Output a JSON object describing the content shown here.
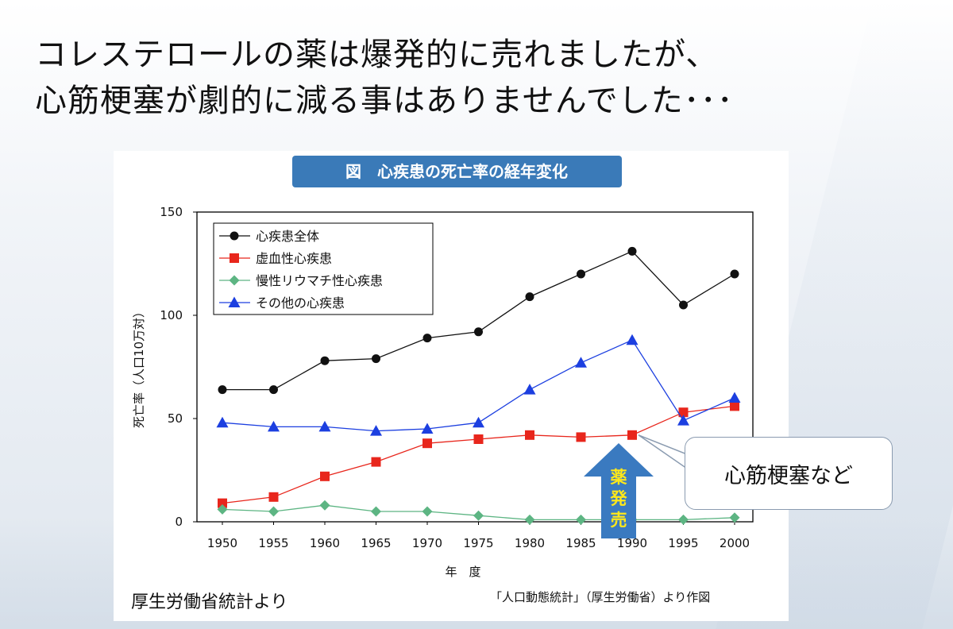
{
  "slide": {
    "heading_line1": "コレステロールの薬は爆発的に売れましたが、",
    "heading_line2": "心筋梗塞が劇的に減る事はありませんでした･･･",
    "source_left": "厚生労働省統計より",
    "source_right": "「人口動態統計」（厚生労働省）より作図",
    "callout_text": "心筋梗塞など",
    "drug_launch_label": "薬発売",
    "drug_launch_year": 1990
  },
  "colors": {
    "title_box": "#3a7ab8",
    "series_total": "#111111",
    "series_ischemic": "#e8261c",
    "series_rheumatic": "#5db583",
    "series_other": "#1c3fe0",
    "arrow": "#3a7ac0",
    "arrow_text": "#ffe81a"
  },
  "chart_data": {
    "type": "line",
    "title": "図　心疾患の死亡率の経年変化",
    "xlabel": "年　度",
    "ylabel": "死亡率（人口10万対）",
    "categories": [
      "1950",
      "1955",
      "1960",
      "1965",
      "1970",
      "1975",
      "1980",
      "1985",
      "1990",
      "1995",
      "2000"
    ],
    "ylim": [
      0,
      150
    ],
    "yticks": [
      0,
      50,
      100,
      150
    ],
    "legend_position": "top-left",
    "series": [
      {
        "name": "心疾患全体",
        "marker": "circle",
        "values": [
          64,
          64,
          78,
          79,
          89,
          92,
          109,
          120,
          131,
          105,
          120
        ]
      },
      {
        "name": "虚血性心疾患",
        "marker": "square",
        "values": [
          9,
          12,
          22,
          29,
          38,
          40,
          42,
          41,
          42,
          53,
          56
        ]
      },
      {
        "name": "慢性リウマチ性心疾患",
        "marker": "diamond",
        "values": [
          6,
          5,
          8,
          5,
          5,
          3,
          1,
          1,
          1,
          1,
          2
        ]
      },
      {
        "name": "その他の心疾患",
        "marker": "triangle",
        "values": [
          48,
          46,
          46,
          44,
          45,
          48,
          64,
          77,
          88,
          49,
          60
        ]
      }
    ]
  }
}
